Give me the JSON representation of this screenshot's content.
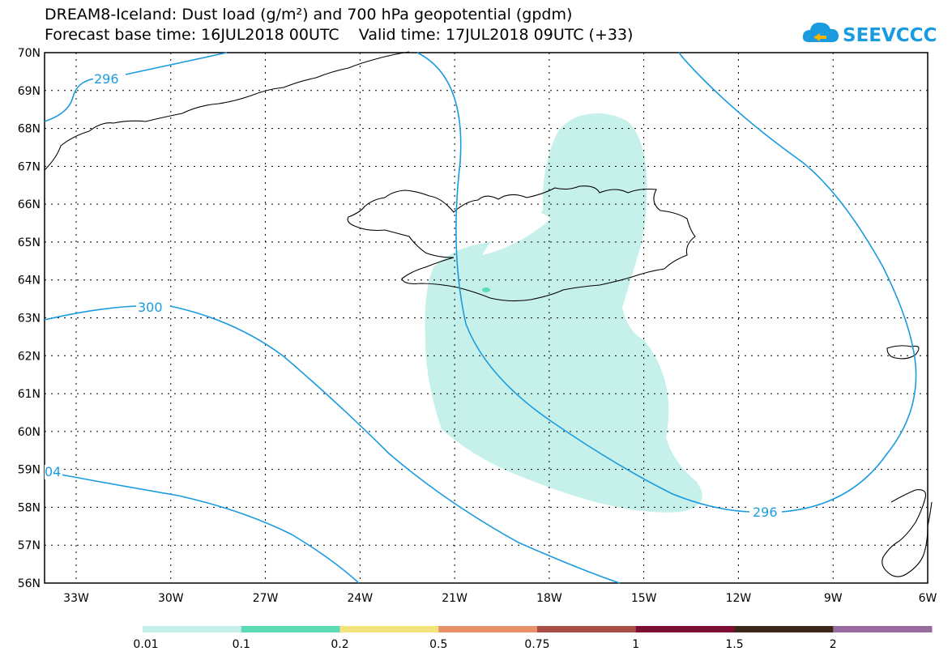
{
  "title": {
    "line1": "DREAM8-Iceland: Dust load (g/m²) and 700 hPa geopotential (gpdm)",
    "line2": "Forecast base time: 16JUL2018 00UTC    Valid time: 17JUL2018 09UTC (+33)"
  },
  "logo": {
    "text": "SEEVCCC",
    "color": "#1a9be0"
  },
  "map": {
    "lat_ticks": [
      "70N",
      "69N",
      "68N",
      "67N",
      "66N",
      "65N",
      "64N",
      "63N",
      "62N",
      "61N",
      "60N",
      "59N",
      "58N",
      "57N",
      "56N"
    ],
    "lon_ticks": [
      "33W",
      "30W",
      "27W",
      "24W",
      "21W",
      "18W",
      "15W",
      "12W",
      "9W",
      "6W"
    ],
    "contour_labels": [
      {
        "text": "296"
      },
      {
        "text": "300"
      },
      {
        "text": "04"
      },
      {
        "text": "296"
      }
    ],
    "contour_color": "#1a9be0",
    "dust_color": "#c6f0ea"
  },
  "colorbar": {
    "labels": [
      "0.01",
      "0.1",
      "0.2",
      "0.5",
      "0.75",
      "1",
      "1.5",
      "2"
    ],
    "colors": [
      "#c6f0ea",
      "#5cdcb4",
      "#f4e37a",
      "#e8916a",
      "#a84e45",
      "#7d0f33",
      "#3c2718",
      "#9a6b9e"
    ]
  }
}
